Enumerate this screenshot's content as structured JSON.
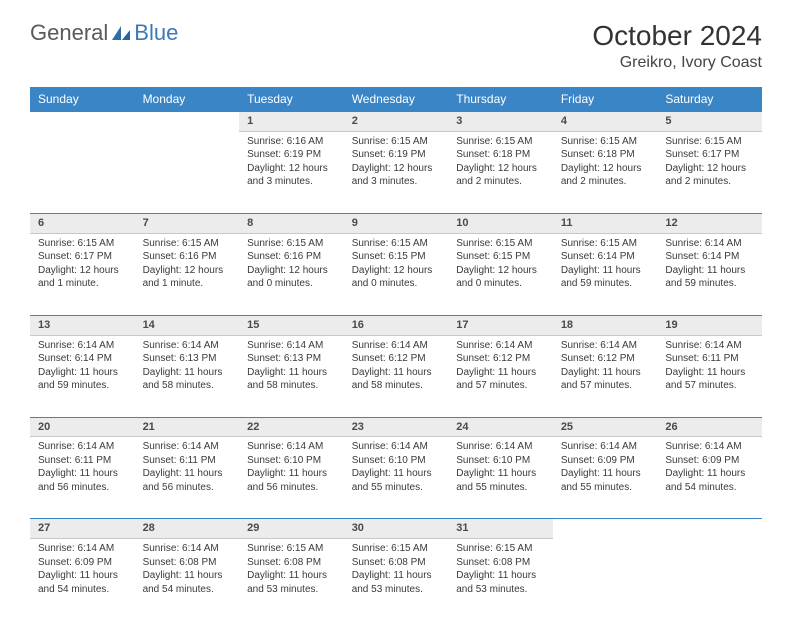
{
  "logo": {
    "text1": "General",
    "text2": "Blue"
  },
  "title": "October 2024",
  "location": "Greikro, Ivory Coast",
  "colors": {
    "header_bg": "#3a85c6",
    "daynum_bg": "#ececec",
    "border": "#3a85c6"
  },
  "day_headers": [
    "Sunday",
    "Monday",
    "Tuesday",
    "Wednesday",
    "Thursday",
    "Friday",
    "Saturday"
  ],
  "weeks": [
    [
      null,
      null,
      {
        "num": "1",
        "l1": "Sunrise: 6:16 AM",
        "l2": "Sunset: 6:19 PM",
        "l3": "Daylight: 12 hours",
        "l4": "and 3 minutes."
      },
      {
        "num": "2",
        "l1": "Sunrise: 6:15 AM",
        "l2": "Sunset: 6:19 PM",
        "l3": "Daylight: 12 hours",
        "l4": "and 3 minutes."
      },
      {
        "num": "3",
        "l1": "Sunrise: 6:15 AM",
        "l2": "Sunset: 6:18 PM",
        "l3": "Daylight: 12 hours",
        "l4": "and 2 minutes."
      },
      {
        "num": "4",
        "l1": "Sunrise: 6:15 AM",
        "l2": "Sunset: 6:18 PM",
        "l3": "Daylight: 12 hours",
        "l4": "and 2 minutes."
      },
      {
        "num": "5",
        "l1": "Sunrise: 6:15 AM",
        "l2": "Sunset: 6:17 PM",
        "l3": "Daylight: 12 hours",
        "l4": "and 2 minutes."
      }
    ],
    [
      {
        "num": "6",
        "l1": "Sunrise: 6:15 AM",
        "l2": "Sunset: 6:17 PM",
        "l3": "Daylight: 12 hours",
        "l4": "and 1 minute."
      },
      {
        "num": "7",
        "l1": "Sunrise: 6:15 AM",
        "l2": "Sunset: 6:16 PM",
        "l3": "Daylight: 12 hours",
        "l4": "and 1 minute."
      },
      {
        "num": "8",
        "l1": "Sunrise: 6:15 AM",
        "l2": "Sunset: 6:16 PM",
        "l3": "Daylight: 12 hours",
        "l4": "and 0 minutes."
      },
      {
        "num": "9",
        "l1": "Sunrise: 6:15 AM",
        "l2": "Sunset: 6:15 PM",
        "l3": "Daylight: 12 hours",
        "l4": "and 0 minutes."
      },
      {
        "num": "10",
        "l1": "Sunrise: 6:15 AM",
        "l2": "Sunset: 6:15 PM",
        "l3": "Daylight: 12 hours",
        "l4": "and 0 minutes."
      },
      {
        "num": "11",
        "l1": "Sunrise: 6:15 AM",
        "l2": "Sunset: 6:14 PM",
        "l3": "Daylight: 11 hours",
        "l4": "and 59 minutes."
      },
      {
        "num": "12",
        "l1": "Sunrise: 6:14 AM",
        "l2": "Sunset: 6:14 PM",
        "l3": "Daylight: 11 hours",
        "l4": "and 59 minutes."
      }
    ],
    [
      {
        "num": "13",
        "l1": "Sunrise: 6:14 AM",
        "l2": "Sunset: 6:14 PM",
        "l3": "Daylight: 11 hours",
        "l4": "and 59 minutes."
      },
      {
        "num": "14",
        "l1": "Sunrise: 6:14 AM",
        "l2": "Sunset: 6:13 PM",
        "l3": "Daylight: 11 hours",
        "l4": "and 58 minutes."
      },
      {
        "num": "15",
        "l1": "Sunrise: 6:14 AM",
        "l2": "Sunset: 6:13 PM",
        "l3": "Daylight: 11 hours",
        "l4": "and 58 minutes."
      },
      {
        "num": "16",
        "l1": "Sunrise: 6:14 AM",
        "l2": "Sunset: 6:12 PM",
        "l3": "Daylight: 11 hours",
        "l4": "and 58 minutes."
      },
      {
        "num": "17",
        "l1": "Sunrise: 6:14 AM",
        "l2": "Sunset: 6:12 PM",
        "l3": "Daylight: 11 hours",
        "l4": "and 57 minutes."
      },
      {
        "num": "18",
        "l1": "Sunrise: 6:14 AM",
        "l2": "Sunset: 6:12 PM",
        "l3": "Daylight: 11 hours",
        "l4": "and 57 minutes."
      },
      {
        "num": "19",
        "l1": "Sunrise: 6:14 AM",
        "l2": "Sunset: 6:11 PM",
        "l3": "Daylight: 11 hours",
        "l4": "and 57 minutes."
      }
    ],
    [
      {
        "num": "20",
        "l1": "Sunrise: 6:14 AM",
        "l2": "Sunset: 6:11 PM",
        "l3": "Daylight: 11 hours",
        "l4": "and 56 minutes."
      },
      {
        "num": "21",
        "l1": "Sunrise: 6:14 AM",
        "l2": "Sunset: 6:11 PM",
        "l3": "Daylight: 11 hours",
        "l4": "and 56 minutes."
      },
      {
        "num": "22",
        "l1": "Sunrise: 6:14 AM",
        "l2": "Sunset: 6:10 PM",
        "l3": "Daylight: 11 hours",
        "l4": "and 56 minutes."
      },
      {
        "num": "23",
        "l1": "Sunrise: 6:14 AM",
        "l2": "Sunset: 6:10 PM",
        "l3": "Daylight: 11 hours",
        "l4": "and 55 minutes."
      },
      {
        "num": "24",
        "l1": "Sunrise: 6:14 AM",
        "l2": "Sunset: 6:10 PM",
        "l3": "Daylight: 11 hours",
        "l4": "and 55 minutes."
      },
      {
        "num": "25",
        "l1": "Sunrise: 6:14 AM",
        "l2": "Sunset: 6:09 PM",
        "l3": "Daylight: 11 hours",
        "l4": "and 55 minutes."
      },
      {
        "num": "26",
        "l1": "Sunrise: 6:14 AM",
        "l2": "Sunset: 6:09 PM",
        "l3": "Daylight: 11 hours",
        "l4": "and 54 minutes."
      }
    ],
    [
      {
        "num": "27",
        "l1": "Sunrise: 6:14 AM",
        "l2": "Sunset: 6:09 PM",
        "l3": "Daylight: 11 hours",
        "l4": "and 54 minutes."
      },
      {
        "num": "28",
        "l1": "Sunrise: 6:14 AM",
        "l2": "Sunset: 6:08 PM",
        "l3": "Daylight: 11 hours",
        "l4": "and 54 minutes."
      },
      {
        "num": "29",
        "l1": "Sunrise: 6:15 AM",
        "l2": "Sunset: 6:08 PM",
        "l3": "Daylight: 11 hours",
        "l4": "and 53 minutes."
      },
      {
        "num": "30",
        "l1": "Sunrise: 6:15 AM",
        "l2": "Sunset: 6:08 PM",
        "l3": "Daylight: 11 hours",
        "l4": "and 53 minutes."
      },
      {
        "num": "31",
        "l1": "Sunrise: 6:15 AM",
        "l2": "Sunset: 6:08 PM",
        "l3": "Daylight: 11 hours",
        "l4": "and 53 minutes."
      },
      null,
      null
    ]
  ]
}
